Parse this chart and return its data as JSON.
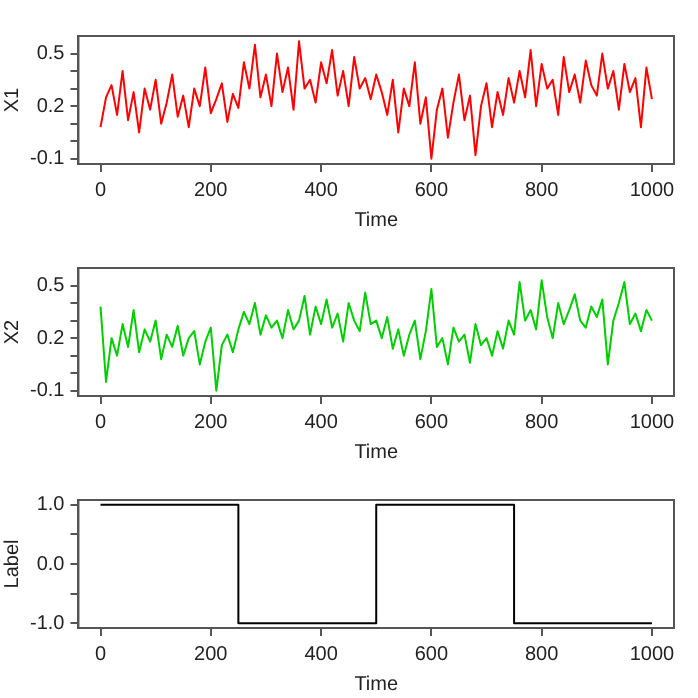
{
  "chart_data": [
    {
      "type": "line",
      "xlabel": "Time",
      "ylabel": "X1",
      "xlim": [
        -40,
        1040
      ],
      "xticks": [
        0,
        200,
        400,
        600,
        800,
        1000
      ],
      "ylim": [
        -0.13,
        0.6
      ],
      "yticks": [
        -0.1,
        {
          "value": 0,
          "label": null
        },
        {
          "value": 0.1,
          "label": null
        },
        0.2,
        {
          "value": 0.3,
          "label": null
        },
        {
          "value": 0.4,
          "label": null
        },
        0.5
      ],
      "grid": false,
      "legend": false,
      "marker": "none",
      "line_style": "solid",
      "series": [
        {
          "color": "#ff0000",
          "x": [
            0,
            10,
            20,
            30,
            40,
            50,
            60,
            70,
            80,
            90,
            100,
            110,
            120,
            130,
            140,
            150,
            160,
            170,
            180,
            190,
            200,
            210,
            220,
            230,
            240,
            250,
            260,
            270,
            280,
            290,
            300,
            310,
            320,
            330,
            340,
            350,
            360,
            370,
            380,
            390,
            400,
            410,
            420,
            430,
            440,
            450,
            460,
            470,
            480,
            490,
            500,
            510,
            520,
            530,
            540,
            550,
            560,
            570,
            580,
            590,
            600,
            610,
            620,
            630,
            640,
            650,
            660,
            670,
            680,
            690,
            700,
            710,
            720,
            730,
            740,
            750,
            760,
            770,
            780,
            790,
            800,
            810,
            820,
            830,
            840,
            850,
            860,
            870,
            880,
            890,
            900,
            910,
            920,
            930,
            940,
            950,
            960,
            970,
            980,
            990,
            1000
          ],
          "values": [
            0.08,
            0.25,
            0.32,
            0.15,
            0.4,
            0.12,
            0.28,
            0.05,
            0.3,
            0.18,
            0.35,
            0.1,
            0.22,
            0.38,
            0.14,
            0.26,
            0.08,
            0.3,
            0.2,
            0.42,
            0.16,
            0.24,
            0.33,
            0.11,
            0.27,
            0.19,
            0.45,
            0.3,
            0.55,
            0.25,
            0.38,
            0.2,
            0.5,
            0.28,
            0.42,
            0.18,
            0.57,
            0.3,
            0.35,
            0.22,
            0.45,
            0.33,
            0.52,
            0.26,
            0.4,
            0.2,
            0.48,
            0.3,
            0.36,
            0.24,
            0.38,
            0.28,
            0.15,
            0.35,
            0.05,
            0.3,
            0.2,
            0.45,
            0.1,
            0.25,
            -0.1,
            0.18,
            0.3,
            0.02,
            0.22,
            0.38,
            0.12,
            0.26,
            -0.08,
            0.2,
            0.33,
            0.08,
            0.28,
            0.15,
            0.36,
            0.22,
            0.4,
            0.25,
            0.52,
            0.2,
            0.44,
            0.3,
            0.35,
            0.15,
            0.48,
            0.28,
            0.38,
            0.22,
            0.46,
            0.32,
            0.26,
            0.5,
            0.3,
            0.4,
            0.18,
            0.44,
            0.28,
            0.36,
            0.08,
            0.42,
            0.24
          ]
        }
      ]
    },
    {
      "type": "line",
      "xlabel": "Time",
      "ylabel": "X2",
      "xlim": [
        -40,
        1040
      ],
      "xticks": [
        0,
        200,
        400,
        600,
        800,
        1000
      ],
      "ylim": [
        -0.13,
        0.6
      ],
      "yticks": [
        -0.1,
        {
          "value": 0,
          "label": null
        },
        {
          "value": 0.1,
          "label": null
        },
        0.2,
        {
          "value": 0.3,
          "label": null
        },
        {
          "value": 0.4,
          "label": null
        },
        0.5
      ],
      "grid": false,
      "legend": false,
      "marker": "none",
      "line_style": "solid",
      "series": [
        {
          "color": "#00cd00",
          "x": [
            0,
            10,
            20,
            30,
            40,
            50,
            60,
            70,
            80,
            90,
            100,
            110,
            120,
            130,
            140,
            150,
            160,
            170,
            180,
            190,
            200,
            210,
            220,
            230,
            240,
            250,
            260,
            270,
            280,
            290,
            300,
            310,
            320,
            330,
            340,
            350,
            360,
            370,
            380,
            390,
            400,
            410,
            420,
            430,
            440,
            450,
            460,
            470,
            480,
            490,
            500,
            510,
            520,
            530,
            540,
            550,
            560,
            570,
            580,
            590,
            600,
            610,
            620,
            630,
            640,
            650,
            660,
            670,
            680,
            690,
            700,
            710,
            720,
            730,
            740,
            750,
            760,
            770,
            780,
            790,
            800,
            810,
            820,
            830,
            840,
            850,
            860,
            870,
            880,
            890,
            900,
            910,
            920,
            930,
            940,
            950,
            960,
            970,
            980,
            990,
            1000
          ],
          "values": [
            0.38,
            -0.05,
            0.2,
            0.1,
            0.28,
            0.15,
            0.36,
            0.12,
            0.25,
            0.18,
            0.3,
            0.08,
            0.22,
            0.15,
            0.27,
            0.1,
            0.2,
            0.24,
            0.05,
            0.18,
            0.26,
            -0.1,
            0.16,
            0.22,
            0.12,
            0.25,
            0.35,
            0.28,
            0.4,
            0.22,
            0.33,
            0.26,
            0.3,
            0.2,
            0.36,
            0.25,
            0.3,
            0.44,
            0.22,
            0.38,
            0.28,
            0.42,
            0.26,
            0.34,
            0.18,
            0.4,
            0.3,
            0.24,
            0.46,
            0.28,
            0.3,
            0.2,
            0.32,
            0.14,
            0.25,
            0.1,
            0.22,
            0.3,
            0.08,
            0.24,
            0.48,
            0.15,
            0.2,
            0.05,
            0.26,
            0.18,
            0.22,
            0.06,
            0.28,
            0.16,
            0.2,
            0.1,
            0.24,
            0.14,
            0.3,
            0.22,
            0.52,
            0.3,
            0.36,
            0.25,
            0.53,
            0.32,
            0.2,
            0.4,
            0.28,
            0.36,
            0.45,
            0.3,
            0.26,
            0.38,
            0.32,
            0.42,
            0.05,
            0.3,
            0.4,
            0.52,
            0.28,
            0.34,
            0.24,
            0.36,
            0.3
          ]
        }
      ]
    },
    {
      "type": "line",
      "xlabel": "Time",
      "ylabel": "Label",
      "xlim": [
        -40,
        1040
      ],
      "xticks": [
        0,
        200,
        400,
        600,
        800,
        1000
      ],
      "ylim": [
        -1.08,
        1.08
      ],
      "yticks": [
        {
          "value": -1,
          "label": "-1.0"
        },
        {
          "value": -0.5,
          "label": null
        },
        {
          "value": 0,
          "label": "0.0"
        },
        {
          "value": 0.5,
          "label": null
        },
        {
          "value": 1,
          "label": "1.0"
        }
      ],
      "grid": false,
      "legend": false,
      "marker": "none",
      "line_style": "solid",
      "series": [
        {
          "color": "#000000",
          "x": [
            0,
            250,
            250,
            500,
            500,
            750,
            750,
            1000
          ],
          "values": [
            1,
            1,
            -1,
            -1,
            1,
            1,
            -1,
            -1
          ]
        }
      ]
    }
  ]
}
